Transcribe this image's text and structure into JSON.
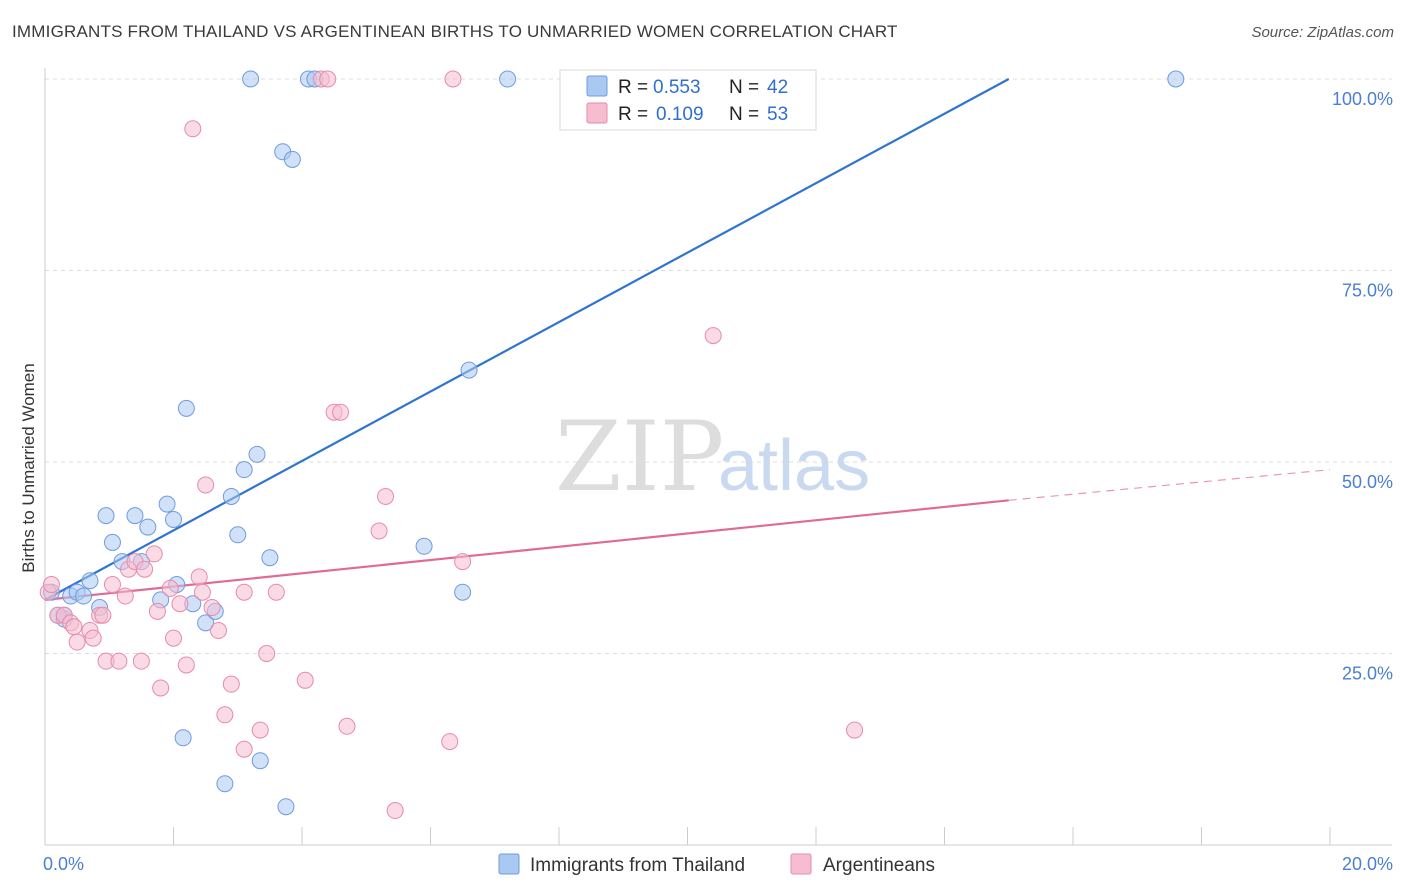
{
  "title": "IMMIGRANTS FROM THAILAND VS ARGENTINEAN BIRTHS TO UNMARRIED WOMEN CORRELATION CHART",
  "source": "Source: ZipAtlas.com",
  "watermark": {
    "zip": "ZIP",
    "atlas": "atlas"
  },
  "legend": {
    "r_label": "R =",
    "n_label": "N =",
    "entries": [
      {
        "r": "0.553",
        "n": "42",
        "color": "#a9c8f2",
        "stroke": "#6f9be0"
      },
      {
        "r": "0.109",
        "n": "53",
        "color": "#f6bdd0",
        "stroke": "#e88aab"
      }
    ]
  },
  "chart_data": {
    "type": "scatter",
    "xlabel": "",
    "ylabel": "Births to Unmarried Women",
    "xlim": [
      0,
      20
    ],
    "ylim": [
      0,
      100
    ],
    "x_tick_labels": [
      {
        "value": 0,
        "label": "0.0%"
      },
      {
        "value": 20,
        "label": "20.0%"
      }
    ],
    "y_tick_labels": [
      {
        "value": 25,
        "label": "25.0%"
      },
      {
        "value": 50,
        "label": "50.0%"
      },
      {
        "value": 75,
        "label": "75.0%"
      },
      {
        "value": 100,
        "label": "100.0%"
      }
    ],
    "series": [
      {
        "name": "Immigrants from Thailand",
        "color": "#a9c8f2",
        "stroke": "#6f9be0",
        "trend": {
          "x0": 0,
          "y0": 32,
          "x1": 15,
          "y1": 100,
          "color": "#2f74d0"
        },
        "points": [
          [
            0.1,
            33
          ],
          [
            0.2,
            30
          ],
          [
            0.3,
            29.5
          ],
          [
            0.3,
            30
          ],
          [
            0.4,
            32.5
          ],
          [
            0.5,
            33
          ],
          [
            0.6,
            32.5
          ],
          [
            0.7,
            34.5
          ],
          [
            0.85,
            31
          ],
          [
            0.95,
            43
          ],
          [
            1.05,
            39.5
          ],
          [
            1.2,
            37
          ],
          [
            1.4,
            43
          ],
          [
            1.5,
            37
          ],
          [
            1.6,
            41.5
          ],
          [
            1.8,
            32
          ],
          [
            1.9,
            44.5
          ],
          [
            2.0,
            42.5
          ],
          [
            2.05,
            34
          ],
          [
            2.2,
            57
          ],
          [
            2.3,
            31.5
          ],
          [
            2.5,
            29
          ],
          [
            2.65,
            30.5
          ],
          [
            2.8,
            8
          ],
          [
            2.9,
            45.5
          ],
          [
            3.0,
            40.5
          ],
          [
            3.1,
            49
          ],
          [
            3.2,
            100
          ],
          [
            3.3,
            51
          ],
          [
            3.35,
            11
          ],
          [
            3.5,
            37.5
          ],
          [
            3.7,
            90.5
          ],
          [
            3.75,
            5
          ],
          [
            3.85,
            89.5
          ],
          [
            4.1,
            100
          ],
          [
            4.2,
            100
          ],
          [
            5.9,
            39
          ],
          [
            6.5,
            33
          ],
          [
            6.6,
            62
          ],
          [
            7.2,
            100
          ],
          [
            17.6,
            100
          ],
          [
            2.15,
            14
          ]
        ]
      },
      {
        "name": "Argentineans",
        "color": "#f6bdd0",
        "stroke": "#e88aab",
        "trend": {
          "x0": 0,
          "y0": 32,
          "x1": 15,
          "y1": 45,
          "dash_x1": 20,
          "dash_y1": 49,
          "color": "#e06a95"
        },
        "points": [
          [
            0.05,
            33
          ],
          [
            0.1,
            34
          ],
          [
            0.2,
            30
          ],
          [
            0.3,
            30
          ],
          [
            0.4,
            29
          ],
          [
            0.45,
            28.5
          ],
          [
            0.5,
            26.5
          ],
          [
            0.7,
            28
          ],
          [
            0.75,
            27
          ],
          [
            0.85,
            30
          ],
          [
            0.9,
            30
          ],
          [
            0.95,
            24
          ],
          [
            1.05,
            34
          ],
          [
            1.15,
            24
          ],
          [
            1.25,
            32.5
          ],
          [
            1.3,
            36
          ],
          [
            1.4,
            37
          ],
          [
            1.5,
            24
          ],
          [
            1.55,
            36
          ],
          [
            1.7,
            38
          ],
          [
            1.75,
            30.5
          ],
          [
            1.8,
            20.5
          ],
          [
            1.95,
            33.5
          ],
          [
            2.0,
            27
          ],
          [
            2.1,
            31.5
          ],
          [
            2.2,
            23.5
          ],
          [
            2.3,
            93.5
          ],
          [
            2.4,
            35
          ],
          [
            2.45,
            33
          ],
          [
            2.5,
            47
          ],
          [
            2.6,
            31
          ],
          [
            2.7,
            28
          ],
          [
            2.8,
            17
          ],
          [
            2.9,
            21
          ],
          [
            3.1,
            33
          ],
          [
            3.1,
            12.5
          ],
          [
            3.35,
            15
          ],
          [
            3.45,
            25
          ],
          [
            3.6,
            33
          ],
          [
            4.05,
            21.5
          ],
          [
            4.3,
            100
          ],
          [
            4.4,
            100
          ],
          [
            4.5,
            56.5
          ],
          [
            4.6,
            56.5
          ],
          [
            4.7,
            15.5
          ],
          [
            5.2,
            41
          ],
          [
            5.3,
            45.5
          ],
          [
            5.45,
            4.5
          ],
          [
            6.3,
            13.5
          ],
          [
            6.5,
            37
          ],
          [
            6.35,
            100
          ],
          [
            10.4,
            66.5
          ],
          [
            12.6,
            15
          ]
        ]
      }
    ]
  },
  "bottom_legend": {
    "items": [
      {
        "label": "Immigrants from Thailand",
        "color": "#a9c8f2",
        "stroke": "#6f9be0"
      },
      {
        "label": "Argentineans",
        "color": "#f6bdd0",
        "stroke": "#e88aab"
      }
    ]
  }
}
